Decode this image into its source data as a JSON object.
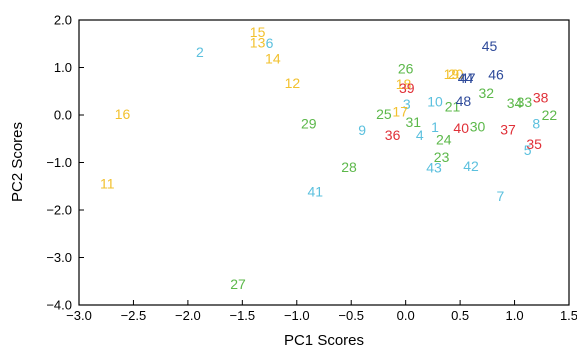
{
  "chart_data": {
    "type": "scatter",
    "xlabel": "PC1 Scores",
    "ylabel": "PC2 Scores",
    "xlim": [
      -3.0,
      1.5
    ],
    "ylim": [
      -4.0,
      2.0
    ],
    "x_ticks": [
      "−3.0",
      "−2.5",
      "−2.0",
      "−1.5",
      "−1.0",
      "−0.5",
      "0.0",
      "0.5",
      "1.0",
      "1.5"
    ],
    "y_ticks": [
      "2.0",
      "1.0",
      "0.0",
      "−1.0",
      "−2.0",
      "−3.0",
      "−4.0"
    ],
    "grid": false,
    "colors": {
      "yellow": "#f2c12e",
      "cyan": "#5bc0de",
      "green": "#5cb84a",
      "red": "#e03038",
      "navy": "#2e4a9a"
    },
    "points": [
      {
        "label": "1",
        "x": 0.27,
        "y": -0.25,
        "color": "cyan"
      },
      {
        "label": "2",
        "x": -1.89,
        "y": 1.33,
        "color": "cyan"
      },
      {
        "label": "3",
        "x": 0.01,
        "y": 0.23,
        "color": "cyan"
      },
      {
        "label": "4",
        "x": 0.13,
        "y": -0.42,
        "color": "cyan"
      },
      {
        "label": "5",
        "x": 1.12,
        "y": -0.74,
        "color": "cyan"
      },
      {
        "label": "6",
        "x": -1.25,
        "y": 1.52,
        "color": "cyan"
      },
      {
        "label": "7",
        "x": 0.87,
        "y": -1.7,
        "color": "cyan"
      },
      {
        "label": "8",
        "x": 1.2,
        "y": -0.18,
        "color": "cyan"
      },
      {
        "label": "9",
        "x": -0.4,
        "y": -0.32,
        "color": "cyan"
      },
      {
        "label": "10",
        "x": 0.27,
        "y": 0.28,
        "color": "cyan"
      },
      {
        "label": "11",
        "x": -2.74,
        "y": -1.44,
        "color": "yellow"
      },
      {
        "label": "12",
        "x": -1.04,
        "y": 0.67,
        "color": "yellow"
      },
      {
        "label": "13",
        "x": -1.36,
        "y": 1.53,
        "color": "yellow"
      },
      {
        "label": "14",
        "x": -1.22,
        "y": 1.19,
        "color": "yellow"
      },
      {
        "label": "15",
        "x": -1.36,
        "y": 1.75,
        "color": "yellow"
      },
      {
        "label": "16",
        "x": -2.6,
        "y": 0.02,
        "color": "yellow"
      },
      {
        "label": "17",
        "x": -0.05,
        "y": 0.07,
        "color": "yellow"
      },
      {
        "label": "18",
        "x": -0.02,
        "y": 0.65,
        "color": "yellow"
      },
      {
        "label": "19",
        "x": 0.42,
        "y": 0.86,
        "color": "yellow"
      },
      {
        "label": "20",
        "x": 0.46,
        "y": 0.86,
        "color": "yellow"
      },
      {
        "label": "21",
        "x": 0.43,
        "y": 0.18,
        "color": "green"
      },
      {
        "label": "22",
        "x": 1.32,
        "y": 0.0,
        "color": "green"
      },
      {
        "label": "23",
        "x": 0.33,
        "y": -0.88,
        "color": "green"
      },
      {
        "label": "24",
        "x": 0.35,
        "y": -0.52,
        "color": "green"
      },
      {
        "label": "25",
        "x": -0.2,
        "y": 0.02,
        "color": "green"
      },
      {
        "label": "26",
        "x": 0.0,
        "y": 0.98,
        "color": "green"
      },
      {
        "label": "27",
        "x": -1.54,
        "y": -3.56,
        "color": "green"
      },
      {
        "label": "28",
        "x": -0.52,
        "y": -1.09,
        "color": "green"
      },
      {
        "label": "29",
        "x": -0.89,
        "y": -0.18,
        "color": "green"
      },
      {
        "label": "30",
        "x": 0.66,
        "y": -0.24,
        "color": "green"
      },
      {
        "label": "31",
        "x": 0.07,
        "y": -0.15,
        "color": "green"
      },
      {
        "label": "32",
        "x": 0.74,
        "y": 0.46,
        "color": "green"
      },
      {
        "label": "33",
        "x": 1.09,
        "y": 0.27,
        "color": "green"
      },
      {
        "label": "34",
        "x": 1.0,
        "y": 0.25,
        "color": "green"
      },
      {
        "label": "35",
        "x": 1.18,
        "y": -0.61,
        "color": "red"
      },
      {
        "label": "36",
        "x": -0.12,
        "y": -0.42,
        "color": "red"
      },
      {
        "label": "37",
        "x": 0.94,
        "y": -0.3,
        "color": "red"
      },
      {
        "label": "38",
        "x": 1.24,
        "y": 0.37,
        "color": "red"
      },
      {
        "label": "39",
        "x": 0.01,
        "y": 0.57,
        "color": "red"
      },
      {
        "label": "40",
        "x": 0.51,
        "y": -0.27,
        "color": "red"
      },
      {
        "label": "41",
        "x": -0.83,
        "y": -1.61,
        "color": "cyan"
      },
      {
        "label": "42",
        "x": 0.6,
        "y": -1.07,
        "color": "cyan"
      },
      {
        "label": "43",
        "x": 0.26,
        "y": -1.1,
        "color": "cyan"
      },
      {
        "label": "44",
        "x": 0.55,
        "y": 0.78,
        "color": "navy"
      },
      {
        "label": "45",
        "x": 0.77,
        "y": 1.45,
        "color": "navy"
      },
      {
        "label": "46",
        "x": 0.83,
        "y": 0.85,
        "color": "navy"
      },
      {
        "label": "47",
        "x": 0.57,
        "y": 0.78,
        "color": "navy"
      },
      {
        "label": "48",
        "x": 0.53,
        "y": 0.3,
        "color": "navy"
      }
    ]
  }
}
